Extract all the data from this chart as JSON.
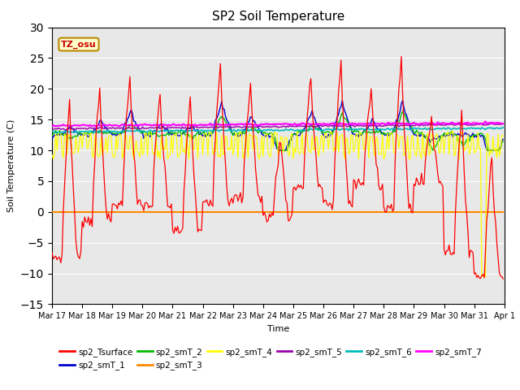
{
  "title": "SP2 Soil Temperature",
  "ylabel": "Soil Temperature (C)",
  "xlabel": "Time",
  "ylim": [
    -15,
    30
  ],
  "yticks": [
    -15,
    -10,
    -5,
    0,
    5,
    10,
    15,
    20,
    25,
    30
  ],
  "annotation_text": "TZ_osu",
  "annotation_color": "#CC0000",
  "annotation_bg": "#FFFFCC",
  "annotation_border": "#BB8800",
  "series_colors": {
    "sp2_Tsurface": "#FF0000",
    "sp2_smT_1": "#0000CC",
    "sp2_smT_2": "#00BB00",
    "sp2_smT_3": "#FF8800",
    "sp2_smT_4": "#FFFF00",
    "sp2_smT_5": "#9900AA",
    "sp2_smT_6": "#00BBBB",
    "sp2_smT_7": "#FF00FF"
  },
  "plot_bg": "#E8E8E8",
  "n_days": 15,
  "start_day": 17,
  "legend_entries": [
    "sp2_Tsurface",
    "sp2_smT_1",
    "sp2_smT_2",
    "sp2_smT_3",
    "sp2_smT_4",
    "sp2_smT_5",
    "sp2_smT_6",
    "sp2_smT_7"
  ]
}
